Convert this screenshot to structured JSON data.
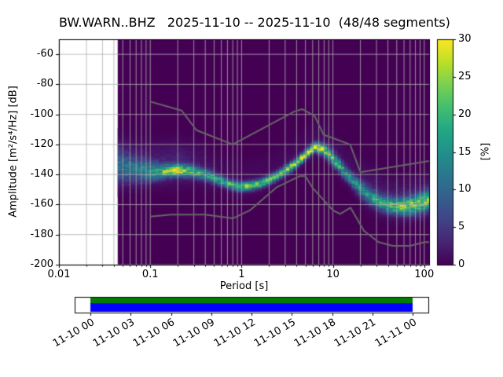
{
  "title": "BW.WARN..BHZ   2025-11-10 -- 2025-11-10  (48/48 segments)",
  "station": "BW.WARN..BHZ",
  "date_range": "2025-11-10 -- 2025-11-10",
  "segments": "48/48 segments",
  "axes": {
    "ylabel": "Amplitude [m²/s⁴/Hz] [dB]",
    "xlabel": "Period [s]",
    "xlim": [
      0.01,
      113
    ],
    "ylim": [
      -200,
      -50
    ],
    "x_ticks": [
      0.01,
      0.1,
      1,
      10,
      100
    ],
    "x_tick_labels": [
      "0.01",
      "0.1",
      "1",
      "10",
      "100"
    ],
    "y_ticks": [
      -60,
      -80,
      -100,
      -120,
      -140,
      -160,
      -180,
      -200
    ],
    "y_tick_labels": [
      "-60",
      "-80",
      "-100",
      "-120",
      "-140",
      "-160",
      "-180",
      "-200"
    ],
    "grid_color": "#b0b0b0"
  },
  "colorbar": {
    "label": "[%]",
    "ticks": [
      0,
      5,
      10,
      15,
      20,
      25,
      30
    ],
    "lim": [
      0,
      30
    ],
    "colormap": [
      [
        0.0,
        "#440154"
      ],
      [
        0.1,
        "#482475"
      ],
      [
        0.2,
        "#414487"
      ],
      [
        0.3,
        "#355f8d"
      ],
      [
        0.4,
        "#2a788e"
      ],
      [
        0.5,
        "#21918c"
      ],
      [
        0.6,
        "#22a884"
      ],
      [
        0.7,
        "#44bf70"
      ],
      [
        0.8,
        "#7ad151"
      ],
      [
        0.9,
        "#bddf26"
      ],
      [
        1.0,
        "#fde725"
      ]
    ]
  },
  "coverage": {
    "tick_labels": [
      "11-10 00",
      "11-10 03",
      "11-10 06",
      "11-10 09",
      "11-10 12",
      "11-10 15",
      "11-10 18",
      "11-10 21",
      "11-11 00"
    ],
    "data_color": "#008000",
    "segment_color": "#0000ff"
  },
  "chart_data": {
    "type": "heatmap",
    "title": "BW.WARN..BHZ   2025-11-10 -- 2025-11-10  (48/48 segments)",
    "xlabel": "Period [s]",
    "ylabel": "Amplitude [m²/s⁴/Hz] [dB]",
    "zlabel": "[%]",
    "x_log_scale": true,
    "grid": true,
    "xlim_period_s": [
      0.01,
      113
    ],
    "ylim_db": [
      -200,
      -50
    ],
    "zlim_pct": [
      0,
      30
    ],
    "background_color": "#440154",
    "hist_period_range": [
      0.044,
      113
    ],
    "period_step_octaves": 0.125,
    "db_bin_width": 1,
    "distribution": {
      "periods_s": [
        0.045,
        0.055,
        0.07,
        0.085,
        0.1,
        0.13,
        0.16,
        0.2,
        0.25,
        0.3,
        0.4,
        0.5,
        0.65,
        0.8,
        1.0,
        1.25,
        1.6,
        2.0,
        2.5,
        3.2,
        4.0,
        5.0,
        6.3,
        8.0,
        10,
        13,
        16,
        20,
        25,
        32,
        40,
        50,
        63,
        80,
        100,
        113
      ],
      "mode_db": [
        -135,
        -136,
        -137,
        -137.5,
        -138,
        -138,
        -137.5,
        -137,
        -137.5,
        -138,
        -140,
        -142,
        -145,
        -147,
        -148,
        -147.5,
        -146,
        -143.5,
        -140.5,
        -136.5,
        -132,
        -127,
        -121.5,
        -123.5,
        -129,
        -137,
        -143,
        -149,
        -154,
        -158,
        -160,
        -161,
        -161,
        -160,
        -158,
        -157
      ],
      "sigma_db": [
        7,
        6,
        5,
        4.5,
        4,
        3,
        2.5,
        2.5,
        2.5,
        2.5,
        2.5,
        2.5,
        2,
        2,
        2,
        2,
        2,
        2,
        2,
        2,
        2,
        2,
        2,
        2.5,
        3,
        3,
        3,
        3.5,
        3.5,
        3.5,
        3.5,
        3.5,
        4,
        4,
        4.5,
        4.5
      ],
      "peak_pct": [
        8,
        9,
        10,
        12,
        14,
        18,
        24,
        28,
        22,
        18,
        16,
        16,
        18,
        20,
        22,
        22,
        20,
        20,
        22,
        24,
        26,
        28,
        30,
        24,
        20,
        16,
        14,
        14,
        15,
        16,
        18,
        20,
        22,
        22,
        20,
        20
      ],
      "halo": {
        "offset_db": 5,
        "sigma_db": 9,
        "amp_pct": [
          3,
          3,
          2.5,
          2.5,
          2.5,
          3,
          3,
          3,
          2.5,
          2,
          1.5,
          1,
          0.8,
          0.8,
          0.8,
          0.8,
          0.8,
          0.8,
          0.8,
          0.8,
          0.8,
          0.8,
          0.8,
          1,
          1,
          1,
          1.2,
          1.5,
          1.8,
          2,
          2,
          2,
          2,
          2,
          2,
          2
        ]
      }
    },
    "noise_models": {
      "color": "#666666",
      "nhnm": {
        "periods_s": [
          0.1,
          0.22,
          0.32,
          0.8,
          3.8,
          4.6,
          6.3,
          7.9,
          15.4,
          20.0,
          354.8
        ],
        "db": [
          -91.5,
          -97.4,
          -110.5,
          -120.0,
          -98.0,
          -96.5,
          -101.0,
          -113.5,
          -120.0,
          -138.5,
          -126.0
        ]
      },
      "nlnm": {
        "periods_s": [
          0.1,
          0.17,
          0.4,
          0.8,
          1.24,
          2.4,
          4.3,
          5.0,
          6.0,
          10.0,
          12.0,
          15.6,
          21.9,
          31.6,
          45.0,
          70.0,
          101.0,
          154.0,
          328.0
        ],
        "db": [
          -168.0,
          -166.7,
          -166.7,
          -169.2,
          -163.7,
          -148.6,
          -141.1,
          -141.1,
          -149.0,
          -163.8,
          -166.2,
          -162.1,
          -177.5,
          -185.0,
          -187.5,
          -187.5,
          -185.0,
          -185.0,
          -187.5
        ]
      }
    }
  }
}
